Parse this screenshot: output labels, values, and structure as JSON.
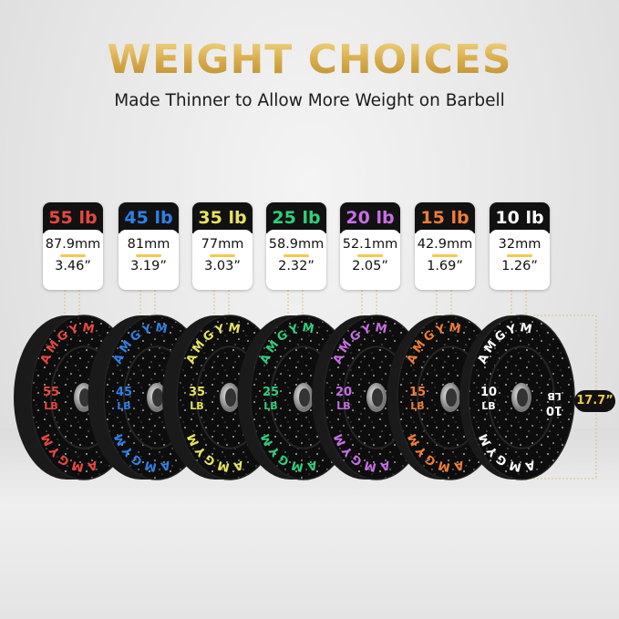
{
  "header": {
    "title": "WEIGHT CHOICES",
    "subtitle": "Made Thinner to Allow More Weight on Barbell"
  },
  "brand": "AMGYM",
  "plates": [
    {
      "weight": "55 lb",
      "face_number": "55",
      "unit": "LB",
      "thickness_mm": "87.9mm",
      "thickness_in": "3.46”",
      "color": "#e8473f"
    },
    {
      "weight": "45 lb",
      "face_number": "45",
      "unit": "LB",
      "thickness_mm": "81mm",
      "thickness_in": "3.19”",
      "color": "#2f7fe6"
    },
    {
      "weight": "35 lb",
      "face_number": "35",
      "unit": "LB",
      "thickness_mm": "77mm",
      "thickness_in": "3.03”",
      "color": "#e8e460"
    },
    {
      "weight": "25 lb",
      "face_number": "25",
      "unit": "LB",
      "thickness_mm": "58.9mm",
      "thickness_in": "2.32”",
      "color": "#2fd07a"
    },
    {
      "weight": "20 lb",
      "face_number": "20",
      "unit": "LB",
      "thickness_mm": "52.1mm",
      "thickness_in": "2.05”",
      "color": "#c96ee6"
    },
    {
      "weight": "15 lb",
      "face_number": "15",
      "unit": "LB",
      "thickness_mm": "42.9mm",
      "thickness_in": "1.69”",
      "color": "#f27c38"
    },
    {
      "weight": "10 lb",
      "face_number": "10",
      "unit": "LB",
      "thickness_mm": "32mm",
      "thickness_in": "1.26”",
      "color": "#ffffff"
    }
  ],
  "diameter": "17.7”",
  "accent_color": "#f2c94c"
}
